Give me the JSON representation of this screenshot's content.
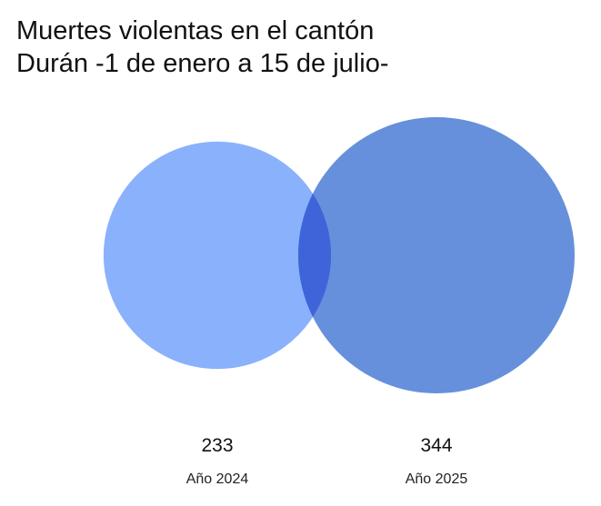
{
  "chart_data": {
    "type": "bubble",
    "title_lines": [
      "Muertes violentas en el cantón",
      "Durán -1 de enero a 15 de julio-"
    ],
    "categories": [
      "Año 2024",
      "Año 2025"
    ],
    "values": [
      233,
      344
    ],
    "colors": [
      "#8AB1FC",
      "#6690DB"
    ],
    "overlap_color": "#3F64DA",
    "legend": "none",
    "grid": false
  }
}
